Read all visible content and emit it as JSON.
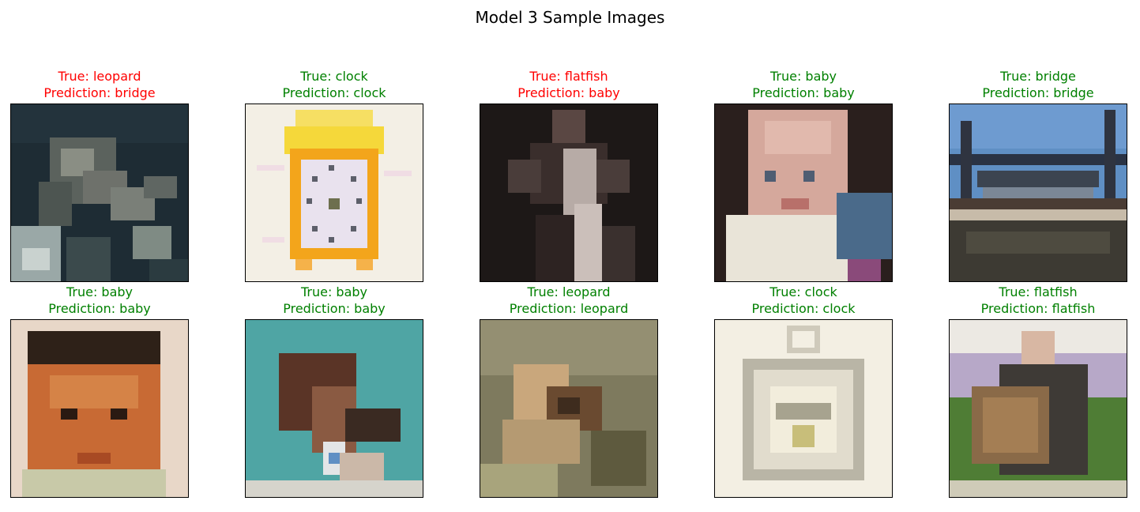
{
  "figure": {
    "title": "Model 3 Sample Images",
    "colors": {
      "correct": "#008000",
      "incorrect": "#ff0000"
    },
    "samples": [
      {
        "true_label": "True: leopard",
        "prediction": "Prediction: bridge",
        "correct": false,
        "subject": "leopard-photo"
      },
      {
        "true_label": "True: clock",
        "prediction": "Prediction: clock",
        "correct": true,
        "subject": "alarm-clock-photo"
      },
      {
        "true_label": "True: flatfish",
        "prediction": "Prediction: baby",
        "correct": false,
        "subject": "person-holding-fish-photo"
      },
      {
        "true_label": "True: baby",
        "prediction": "Prediction: baby",
        "correct": true,
        "subject": "baby-face-photo"
      },
      {
        "true_label": "True: bridge",
        "prediction": "Prediction: bridge",
        "correct": true,
        "subject": "steel-bridge-photo"
      },
      {
        "true_label": "True: baby",
        "prediction": "Prediction: baby",
        "correct": true,
        "subject": "baby-face-photo"
      },
      {
        "true_label": "True: baby",
        "prediction": "Prediction: baby",
        "correct": true,
        "subject": "baby-lying-photo"
      },
      {
        "true_label": "True: leopard",
        "prediction": "Prediction: leopard",
        "correct": true,
        "subject": "leopard-photo"
      },
      {
        "true_label": "True: clock",
        "prediction": "Prediction: clock",
        "correct": true,
        "subject": "pocket-watch-photo"
      },
      {
        "true_label": "True: flatfish",
        "prediction": "Prediction: flatfish",
        "correct": true,
        "subject": "person-holding-fish-photo"
      }
    ]
  }
}
